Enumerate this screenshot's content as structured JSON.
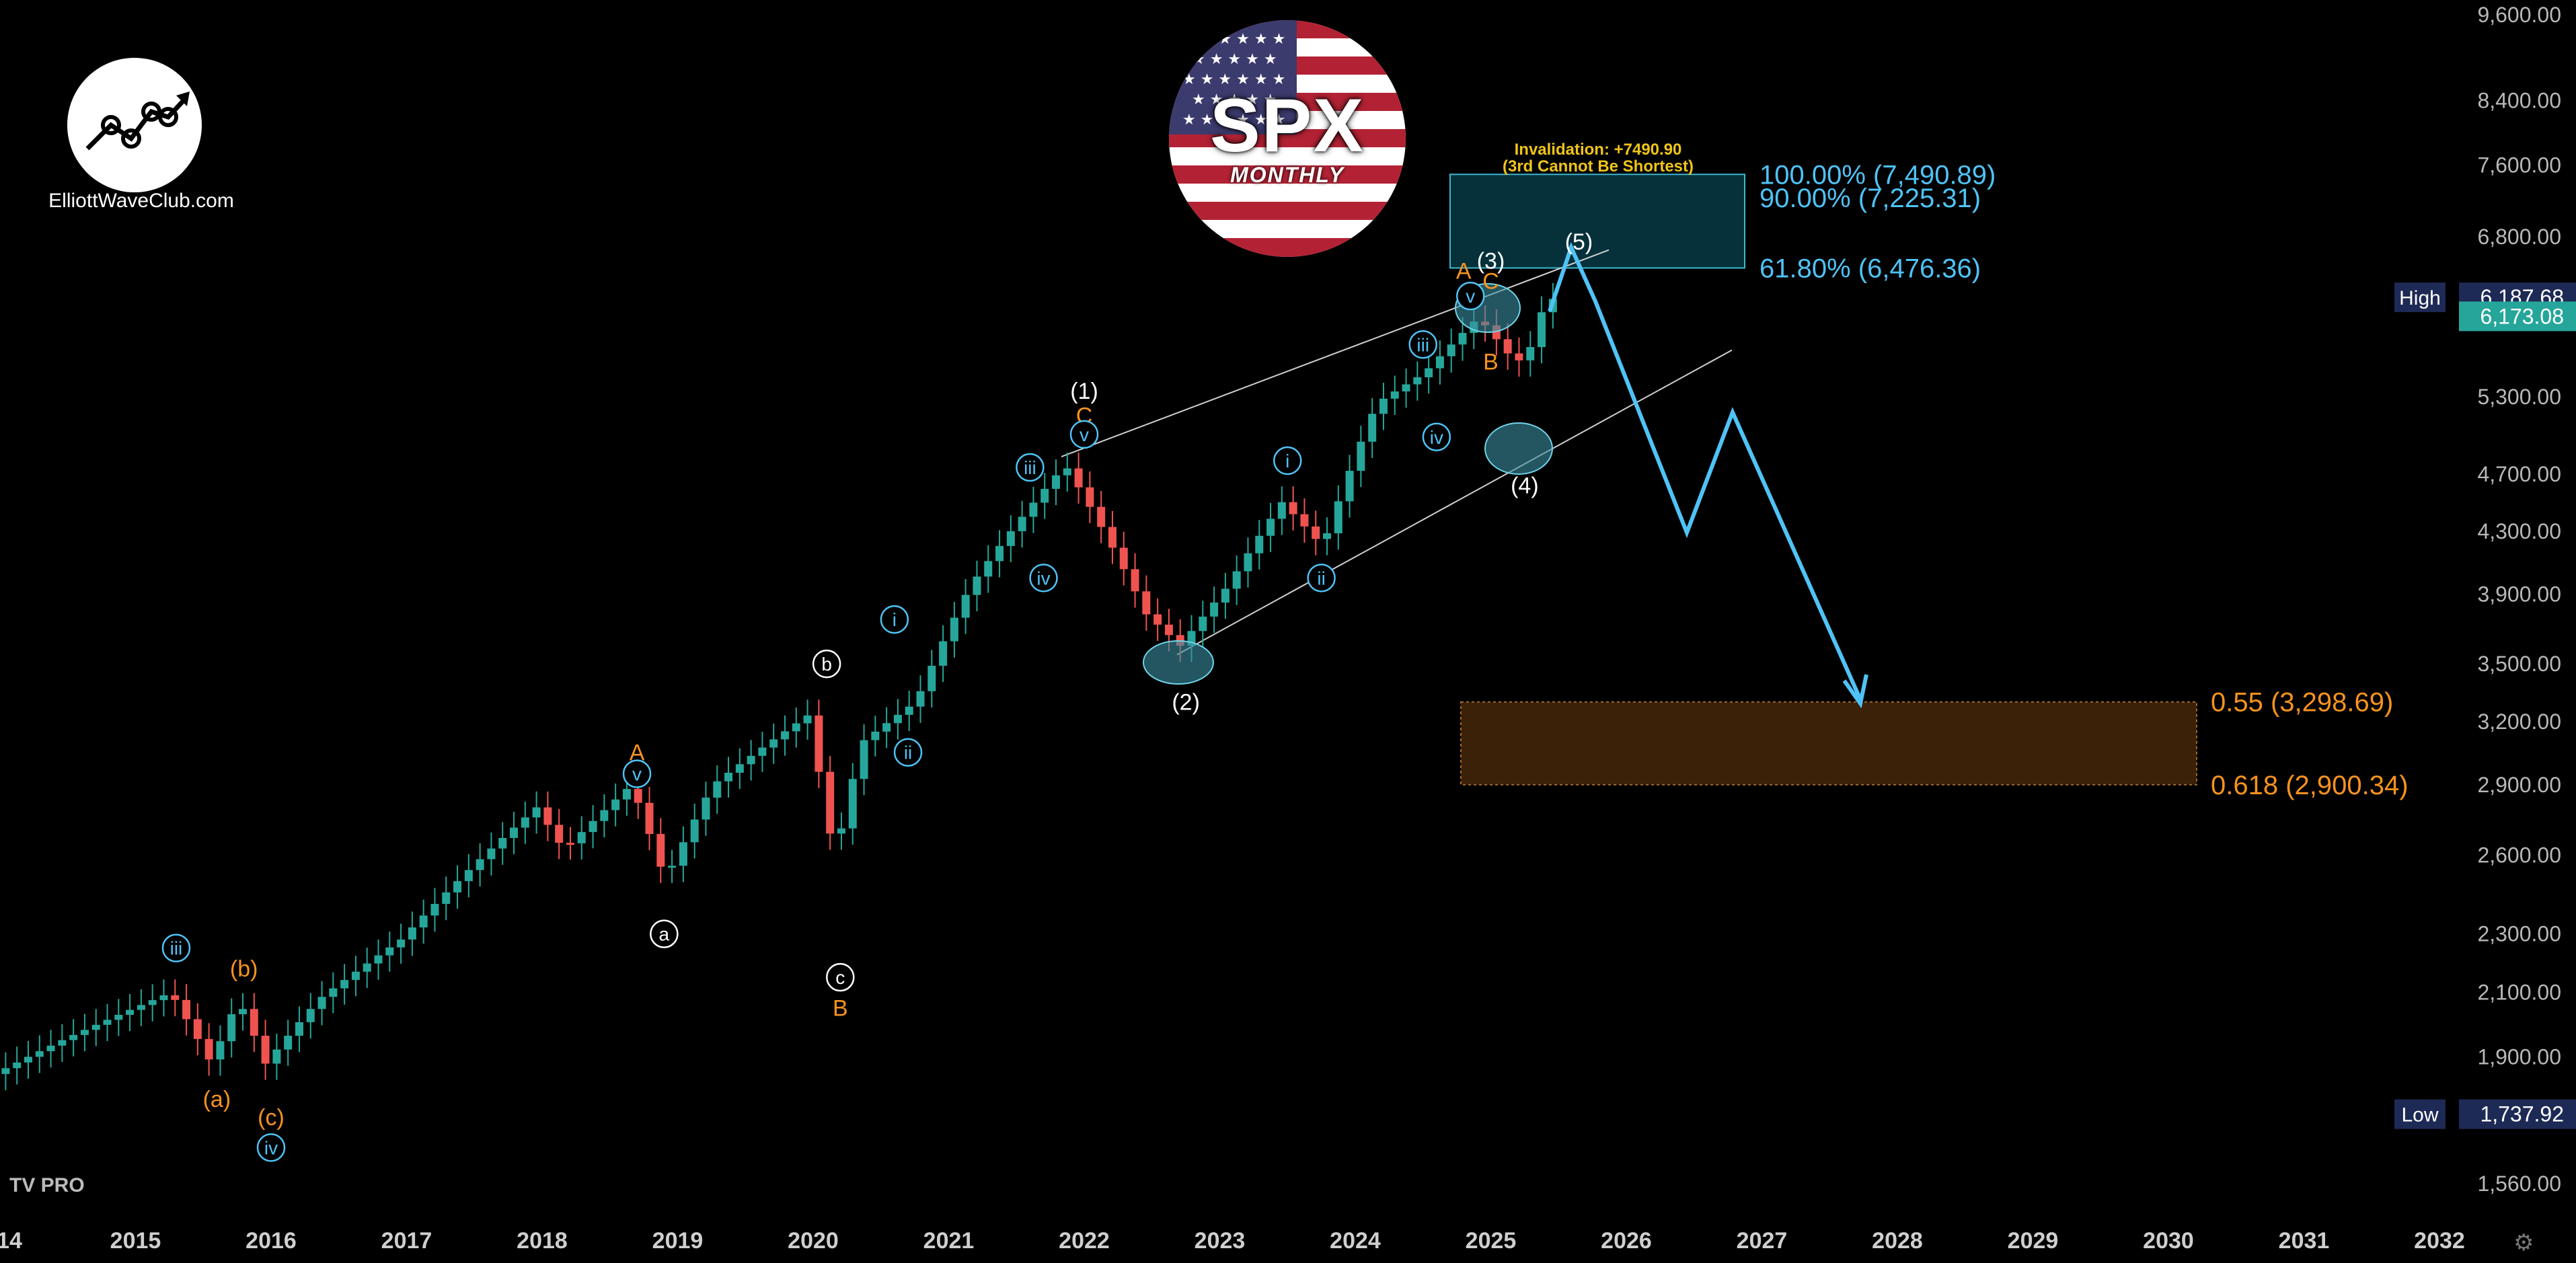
{
  "branding": {
    "site": "ElliottWaveClub.com",
    "badge_title": "SPX",
    "badge_subtitle": "MONTHLY",
    "platform": "TV PRO",
    "logo_icon": "trend-line-chart-icon",
    "settings_icon": "gear-icon"
  },
  "colors": {
    "bull": "#26a69a",
    "bear": "#ef5350",
    "cyan": "#4fc3f7",
    "orange": "#f7931e",
    "gold": "#f0c419",
    "white": "#ffffff"
  },
  "chart_data": {
    "type": "candlestick",
    "timeframe": "monthly",
    "ylim": [
      1500,
      9700
    ],
    "xlim": [
      2014,
      2032
    ],
    "y_ticks": [
      "9,600.00",
      "8,400.00",
      "7,600.00",
      "6,800.00",
      "6,000.00",
      "5,300.00",
      "4,700.00",
      "4,300.00",
      "3,900.00",
      "3,500.00",
      "3,200.00",
      "2,900.00",
      "2,600.00",
      "2,300.00",
      "2,100.00",
      "1,900.00",
      "1,560.00"
    ],
    "x_ticks": [
      "14",
      "2015",
      "2016",
      "2017",
      "2018",
      "2019",
      "2020",
      "2021",
      "2022",
      "2023",
      "2024",
      "2025",
      "2026",
      "2027",
      "2028",
      "2029",
      "2030",
      "2031",
      "2032"
    ],
    "price_tags": [
      {
        "label": "High",
        "value": "6,187.68"
      },
      {
        "label": "",
        "value": "6,173.08"
      },
      {
        "label": "Low",
        "value": "1,737.92"
      }
    ],
    "fib_levels": [
      {
        "text": "100.00% (7,490.89)",
        "value": 7490.89,
        "color": "cyan"
      },
      {
        "text": "90.00% (7,225.31)",
        "value": 7225.31,
        "color": "cyan"
      },
      {
        "text": "61.80% (6,476.36)",
        "value": 6476.36,
        "color": "cyan"
      },
      {
        "text": "0.55 (3,298.69)",
        "value": 3298.69,
        "color": "orange"
      },
      {
        "text": "0.618 (2,900.34)",
        "value": 2900.34,
        "color": "orange"
      }
    ],
    "invalidation": {
      "line1": "Invalidation: +7490.90",
      "line2": "(3rd Cannot Be Shortest)"
    },
    "wave_labels": [
      {
        "text": "iii",
        "x": 2015.3,
        "y": 2250,
        "style": "circle",
        "color": "cyan"
      },
      {
        "text": "(b)",
        "x": 2015.8,
        "y": 2180,
        "style": "plain",
        "color": "orange"
      },
      {
        "text": "(a)",
        "x": 2015.6,
        "y": 1780,
        "style": "plain",
        "color": "orange"
      },
      {
        "text": "(c)",
        "x": 2016.0,
        "y": 1730,
        "style": "plain",
        "color": "orange"
      },
      {
        "text": "iv",
        "x": 2016.0,
        "y": 1650,
        "style": "circle",
        "color": "cyan"
      },
      {
        "text": "A",
        "x": 2018.7,
        "y": 3050,
        "style": "plain",
        "color": "orange"
      },
      {
        "text": "v",
        "x": 2018.7,
        "y": 2950,
        "style": "circle",
        "color": "cyan"
      },
      {
        "text": "a",
        "x": 2018.9,
        "y": 2300,
        "style": "circle",
        "color": "white"
      },
      {
        "text": "b",
        "x": 2020.1,
        "y": 3500,
        "style": "circle",
        "color": "white"
      },
      {
        "text": "c",
        "x": 2020.2,
        "y": 2150,
        "style": "circle",
        "color": "white"
      },
      {
        "text": "B",
        "x": 2020.2,
        "y": 2050,
        "style": "plain",
        "color": "orange"
      },
      {
        "text": "i",
        "x": 2020.6,
        "y": 3750,
        "style": "circle",
        "color": "cyan"
      },
      {
        "text": "ii",
        "x": 2020.7,
        "y": 3050,
        "style": "circle",
        "color": "cyan"
      },
      {
        "text": "iii",
        "x": 2021.6,
        "y": 4750,
        "style": "circle",
        "color": "cyan"
      },
      {
        "text": "iv",
        "x": 2021.7,
        "y": 4000,
        "style": "circle",
        "color": "cyan"
      },
      {
        "text": "(1)",
        "x": 2022.0,
        "y": 5350,
        "style": "plain",
        "color": "white"
      },
      {
        "text": "C",
        "x": 2022.0,
        "y": 5150,
        "style": "plain",
        "color": "orange"
      },
      {
        "text": "v",
        "x": 2022.0,
        "y": 5000,
        "style": "circle",
        "color": "cyan"
      },
      {
        "text": "(2)",
        "x": 2022.75,
        "y": 3300,
        "style": "plain",
        "color": "white"
      },
      {
        "text": "i",
        "x": 2023.5,
        "y": 4800,
        "style": "circle",
        "color": "cyan"
      },
      {
        "text": "ii",
        "x": 2023.75,
        "y": 4000,
        "style": "circle",
        "color": "cyan"
      },
      {
        "text": "iii",
        "x": 2024.5,
        "y": 5750,
        "style": "circle",
        "color": "cyan"
      },
      {
        "text": "iv",
        "x": 2024.6,
        "y": 4980,
        "style": "circle",
        "color": "cyan"
      },
      {
        "text": "A",
        "x": 2024.8,
        "y": 6450,
        "style": "plain",
        "color": "orange"
      },
      {
        "text": "(3)",
        "x": 2025.0,
        "y": 6550,
        "style": "plain",
        "color": "white"
      },
      {
        "text": "C",
        "x": 2025.0,
        "y": 6350,
        "style": "plain",
        "color": "orange"
      },
      {
        "text": "v",
        "x": 2024.85,
        "y": 6200,
        "style": "circle",
        "color": "cyan"
      },
      {
        "text": "B",
        "x": 2025.0,
        "y": 5600,
        "style": "plain",
        "color": "orange"
      },
      {
        "text": "(4)",
        "x": 2025.25,
        "y": 4620,
        "style": "plain",
        "color": "white"
      },
      {
        "text": "(5)",
        "x": 2025.65,
        "y": 6750,
        "style": "plain",
        "color": "white"
      }
    ]
  }
}
